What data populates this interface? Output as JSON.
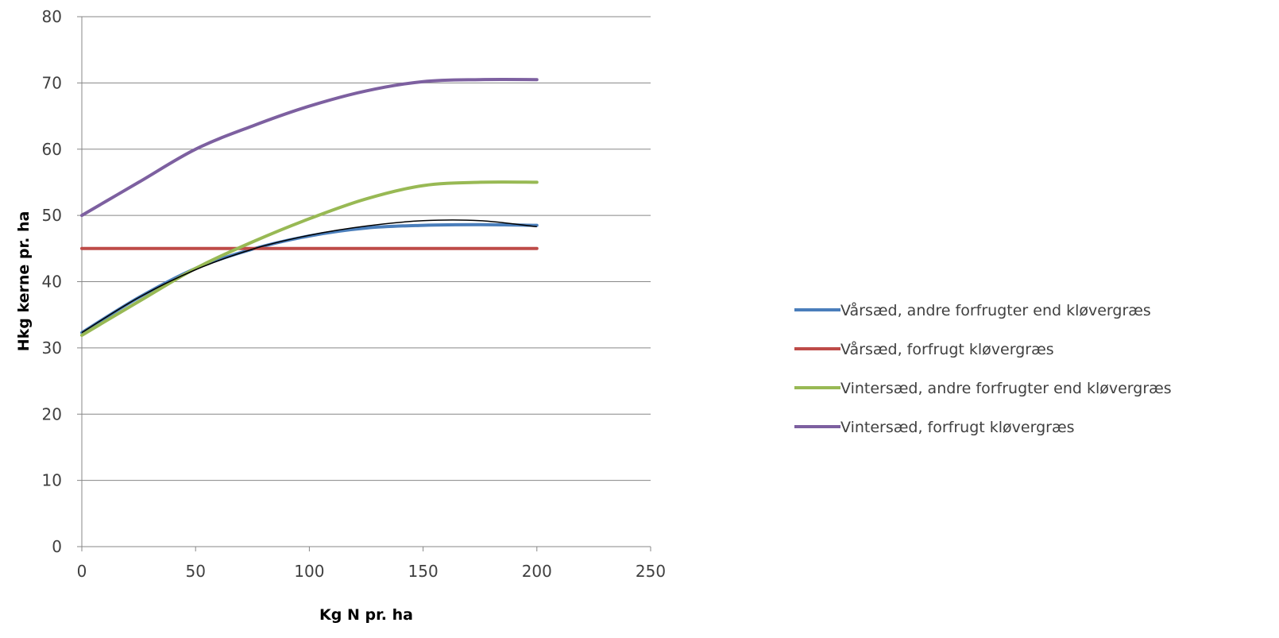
{
  "chart_data": {
    "type": "line",
    "xlabel": "Kg N pr. ha",
    "ylabel": "Hkg kerne pr. ha",
    "xlim": [
      0,
      250
    ],
    "ylim": [
      0,
      80
    ],
    "xticks": [
      0,
      50,
      100,
      150,
      200,
      250
    ],
    "yticks": [
      0,
      10,
      20,
      30,
      40,
      50,
      60,
      70,
      80
    ],
    "grid": "horizontal",
    "legend_position": "right",
    "x": [
      0,
      25,
      50,
      75,
      100,
      125,
      150,
      175,
      200
    ],
    "series": [
      {
        "name": "Vårsæd, andre forfrugter end kløvergræs",
        "color": "#4a7ebb",
        "values": [
          32.3,
          37.6,
          42.0,
          44.9,
          46.9,
          48.1,
          48.5,
          48.6,
          48.5
        ]
      },
      {
        "name": "Vårsæd, forfrugt kløvergræs",
        "color": "#be4b48",
        "values": [
          45,
          45,
          45,
          45,
          45,
          45,
          45,
          45,
          45
        ]
      },
      {
        "name": "Vintersæd, andre forfrugter end kløvergræs",
        "color": "#98b954",
        "values": [
          31.9,
          37.0,
          42.0,
          46.0,
          49.5,
          52.5,
          54.5,
          55.0,
          55.0
        ]
      },
      {
        "name": "Vintersæd, forfrugt kløvergræs",
        "color": "#7d60a0",
        "values": [
          50.0,
          55.0,
          60.0,
          63.5,
          66.5,
          68.8,
          70.2,
          70.5,
          70.5
        ]
      }
    ],
    "overlay": {
      "color": "#000000",
      "values": [
        32.3,
        37.6,
        41.8,
        44.9,
        47.0,
        48.4,
        49.2,
        49.2,
        48.3
      ]
    }
  }
}
